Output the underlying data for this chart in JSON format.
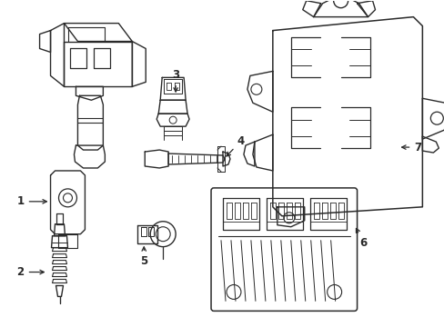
{
  "background_color": "#ffffff",
  "line_color": "#2a2a2a",
  "line_width": 1.0,
  "label_fontsize": 8.5,
  "figsize": [
    4.89,
    3.6
  ],
  "dpi": 100
}
